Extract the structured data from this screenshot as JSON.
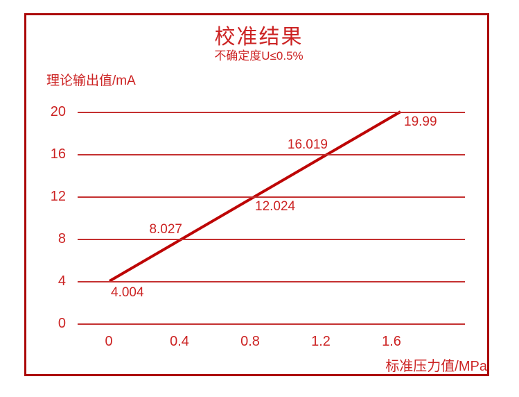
{
  "colors": {
    "accent_text": "#cc2323",
    "border": "#ab0808",
    "grid": "#c43030",
    "line": "#bd0505"
  },
  "chart_data": {
    "type": "line",
    "title": "校准结果",
    "subtitle": "不确定度U≤0.5%",
    "ylabel": "理论输出值/mA",
    "xlabel": "标准压力值/MPa",
    "x": [
      0,
      0.4,
      0.8,
      1.2,
      1.6
    ],
    "y_line_theoretical": [
      4,
      8,
      12,
      16,
      20
    ],
    "measured_values": [
      4.004,
      8.027,
      12.024,
      16.019,
      19.99
    ],
    "point_labels": [
      "4.004",
      "8.027",
      "12.024",
      "16.019",
      "19.99"
    ],
    "x_ticks": [
      "0",
      "0.4",
      "0.8",
      "1.2",
      "1.6"
    ],
    "y_ticks": [
      "20",
      "16",
      "12",
      "8",
      "4",
      "0"
    ],
    "xlim": [
      0,
      1.6
    ],
    "ylim": [
      0,
      20
    ],
    "grid": true,
    "legend": false
  }
}
